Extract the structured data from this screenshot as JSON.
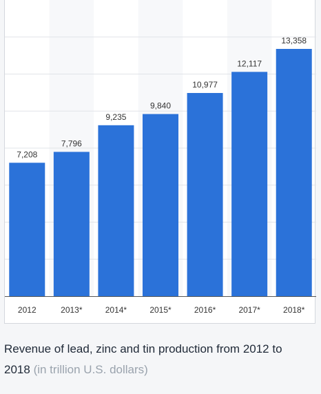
{
  "caption": {
    "title": "Revenue of lead, zinc and tin production from 2012 to 2018",
    "unit": "(in trillion U.S. dollars)"
  },
  "colors": {
    "bar": "#2b72d9",
    "grid": "#e1e4e8",
    "alt_band": "#f7f8fa",
    "axis": "#555555"
  },
  "chart_data": {
    "type": "bar",
    "categories": [
      "2012",
      "2013*",
      "2014*",
      "2015*",
      "2016*",
      "2017*",
      "2018*"
    ],
    "values": [
      7208,
      7796,
      9235,
      9840,
      10977,
      12117,
      13358
    ],
    "value_labels": [
      "7,208",
      "7,796",
      "9,235",
      "9,840",
      "10,977",
      "12,117",
      "13,358"
    ],
    "ylim": [
      0,
      16000
    ],
    "grid": true,
    "xlabel": "",
    "ylabel": ""
  }
}
